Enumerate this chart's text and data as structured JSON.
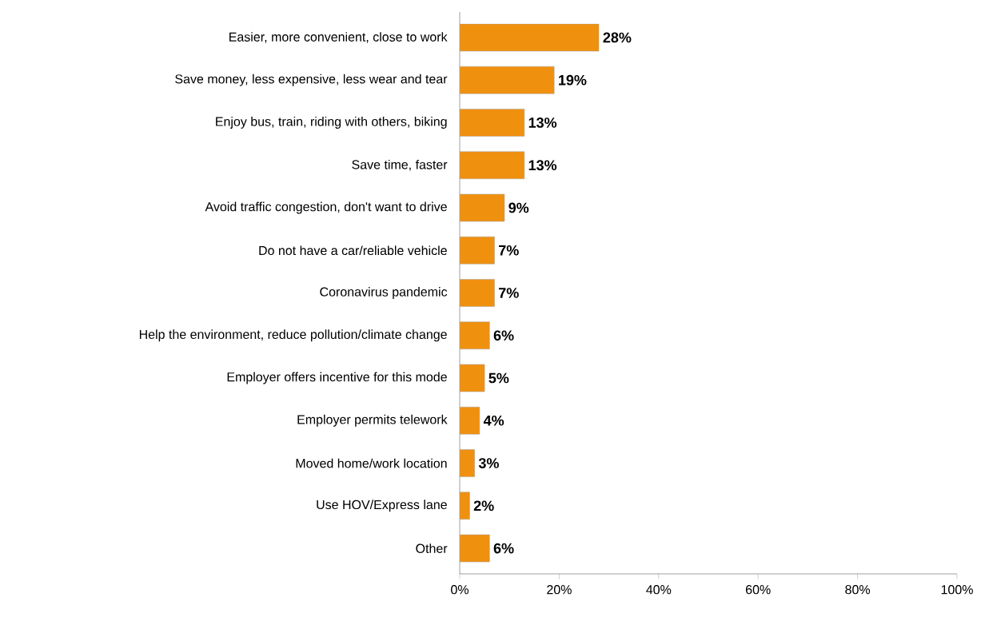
{
  "chart_data": {
    "type": "bar",
    "orientation": "horizontal",
    "categories": [
      "Easier, more convenient, close to work",
      "Save money, less expensive, less wear and tear",
      "Enjoy bus, train, riding with others, biking",
      "Save time, faster",
      "Avoid traffic congestion, don't want to drive",
      "Do not have a car/reliable vehicle",
      "Coronavirus pandemic",
      "Help the environment, reduce pollution/climate change",
      "Employer offers incentive for this mode",
      "Employer permits telework",
      "Moved home/work location",
      "Use HOV/Express lane",
      "Other"
    ],
    "values": [
      28,
      19,
      13,
      13,
      9,
      7,
      7,
      6,
      5,
      4,
      3,
      2,
      6
    ],
    "value_labels": [
      "28%",
      "19%",
      "13%",
      "13%",
      "9%",
      "7%",
      "7%",
      "6%",
      "5%",
      "4%",
      "3%",
      "2%",
      "6%"
    ],
    "color": "#f0900f",
    "xlim": [
      0,
      100
    ],
    "xticks": [
      {
        "value": 0,
        "label": "0%"
      },
      {
        "value": 20,
        "label": "20%"
      },
      {
        "value": 40,
        "label": "40%"
      },
      {
        "value": 60,
        "label": "60%"
      },
      {
        "value": 80,
        "label": "80%"
      },
      {
        "value": 100,
        "label": "100%"
      }
    ],
    "grid": false
  }
}
